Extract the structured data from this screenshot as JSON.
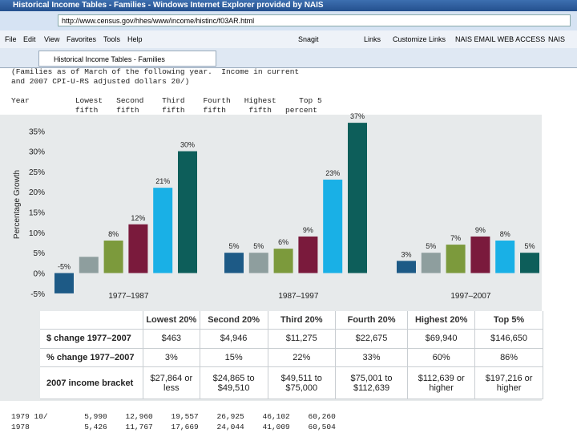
{
  "browser": {
    "title": "Historical Income Tables - Families - Windows Internet Explorer provided by NAIS",
    "url": "http://www.census.gov/hhes/www/income/histinc/f03AR.html",
    "menu": [
      "File",
      "Edit",
      "View",
      "Favorites",
      "Tools",
      "Help"
    ],
    "toolbar": [
      "Snagit",
      "Links",
      "Customize Links",
      "NAIS EMAIL WEB ACCESS",
      "NAIS"
    ],
    "tab": "Historical Income Tables - Families"
  },
  "background_text": {
    "top": [
      "(Families as of March of the following year.  Income in current",
      "and 2007 CPI-U-RS adjusted dollars 20/)",
      "",
      "Year          Lowest   Second    Third    Fourth   Highest     Top 5",
      "              fifth    fifth     fifth    fifth     fifth   percent"
    ],
    "bottom": [
      "1979 10/        5,990    12,960    19,557    26,925    46,102    60,260",
      "1978            5,426    11,767    17,669    24,044    41,009    60,504"
    ]
  },
  "chart_data": {
    "type": "bar",
    "y_label": "Percentage Growth",
    "categories": [
      "1977–1987",
      "1987–1997",
      "1997–2007"
    ],
    "series": [
      {
        "color": "#1d5a86",
        "values": [
          -5,
          5,
          3
        ],
        "value_labels": [
          "-5%",
          "5%",
          "3%"
        ]
      },
      {
        "color": "#8e9e9e",
        "values": [
          4,
          5,
          5
        ],
        "value_labels": [
          null,
          "5%",
          "5%"
        ]
      },
      {
        "color": "#7c9a3c",
        "values": [
          8,
          6,
          7
        ],
        "value_labels": [
          "8%",
          "6%",
          "7%"
        ]
      },
      {
        "color": "#7a1a3c",
        "values": [
          12,
          9,
          9
        ],
        "value_labels": [
          "12%",
          "9%",
          "9%"
        ]
      },
      {
        "color": "#19b0e6",
        "values": [
          21,
          23,
          8
        ],
        "value_labels": [
          "21%",
          "23%",
          "8%"
        ]
      },
      {
        "color": "#0d5e5a",
        "values": [
          30,
          37,
          5
        ],
        "value_labels": [
          "30%",
          "37%",
          "5%"
        ]
      }
    ],
    "ylim": [
      -7,
      39
    ],
    "yticks": [
      {
        "value": -5,
        "label": "-5%"
      },
      {
        "value": 0,
        "label": "0%"
      },
      {
        "value": 5,
        "label": "5%"
      },
      {
        "value": 10,
        "label": "10%"
      },
      {
        "value": 15,
        "label": "15%"
      },
      {
        "value": 20,
        "label": "20%"
      },
      {
        "value": 25,
        "label": "25%"
      },
      {
        "value": 30,
        "label": "30%"
      },
      {
        "value": 35,
        "label": "35%"
      }
    ]
  },
  "table": {
    "header": [
      "Lowest 20%",
      "Second 20%",
      "Third 20%",
      "Fourth 20%",
      "Highest 20%",
      "Top 5%"
    ],
    "rows": [
      {
        "label": "$ change 1977–2007",
        "cells": [
          "$463",
          "$4,946",
          "$11,275",
          "$22,675",
          "$69,940",
          "$146,650"
        ]
      },
      {
        "label": "% change 1977–2007",
        "cells": [
          "3%",
          "15%",
          "22%",
          "33%",
          "60%",
          "86%"
        ]
      },
      {
        "label": "2007 income bracket",
        "cells": [
          "$27,864 or less",
          "$24,865 to $49,510",
          "$49,511 to $75,000",
          "$75,001 to $112,639",
          "$112,639 or higher",
          "$197,216 or higher"
        ]
      }
    ]
  }
}
